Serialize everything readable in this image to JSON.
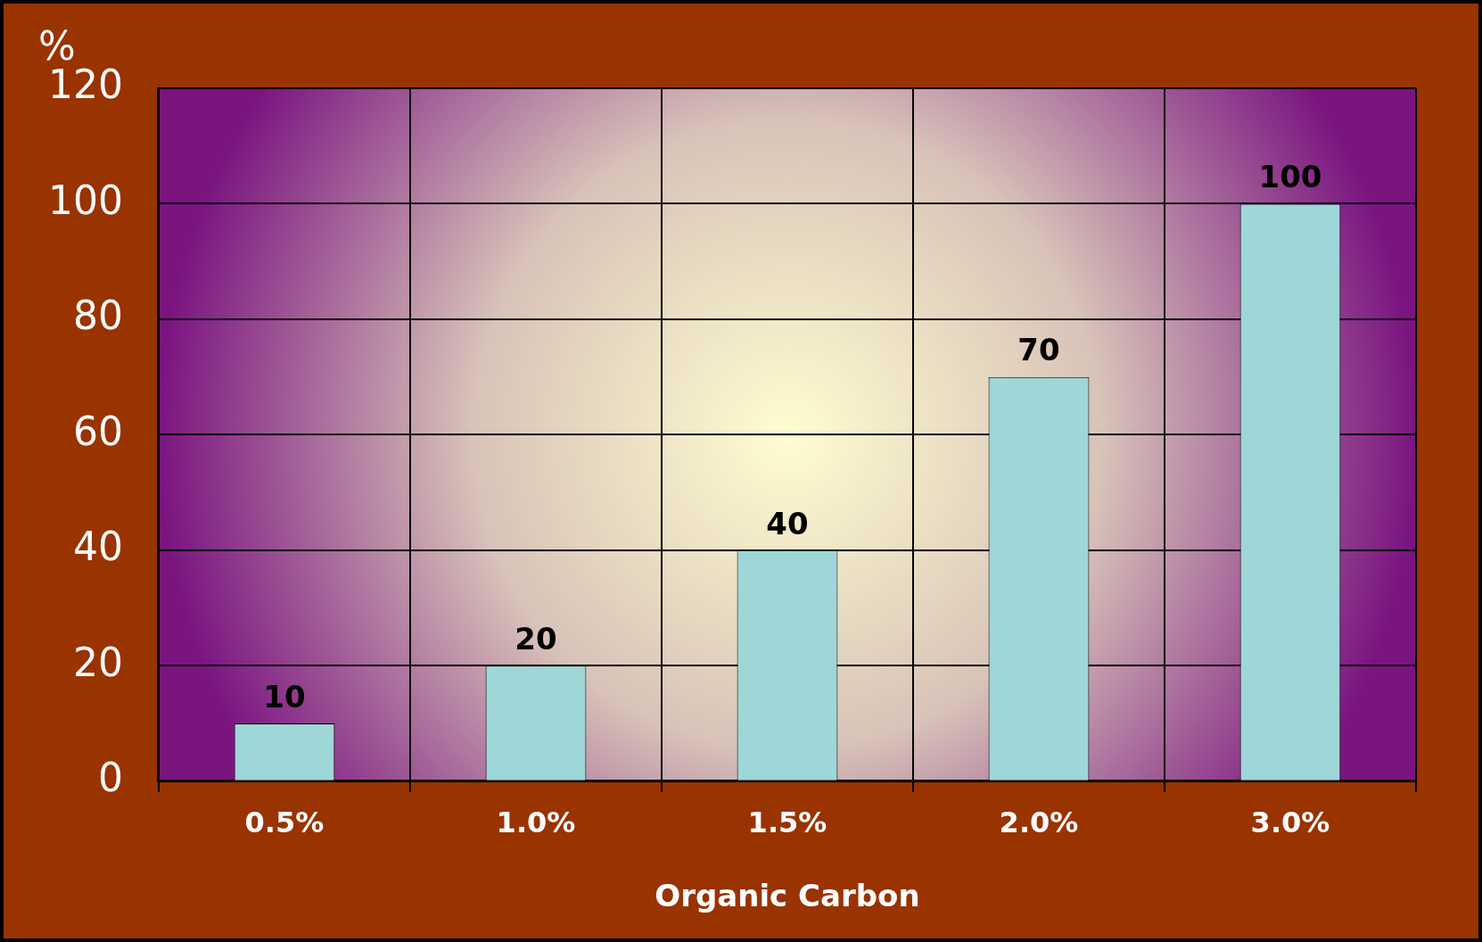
{
  "chart_data": {
    "type": "bar",
    "categories": [
      "0.5%",
      "1.0%",
      "1.5%",
      "2.0%",
      "3.0%"
    ],
    "values": [
      10,
      20,
      40,
      70,
      100
    ],
    "color": "#9fd6d8",
    "ylim": [
      0,
      120
    ],
    "yticks": [
      0,
      20,
      40,
      60,
      80,
      100,
      120
    ],
    "ylabel": "%",
    "xlabel": "Organic Carbon",
    "data_labels": true,
    "grid": true,
    "legend": false
  }
}
